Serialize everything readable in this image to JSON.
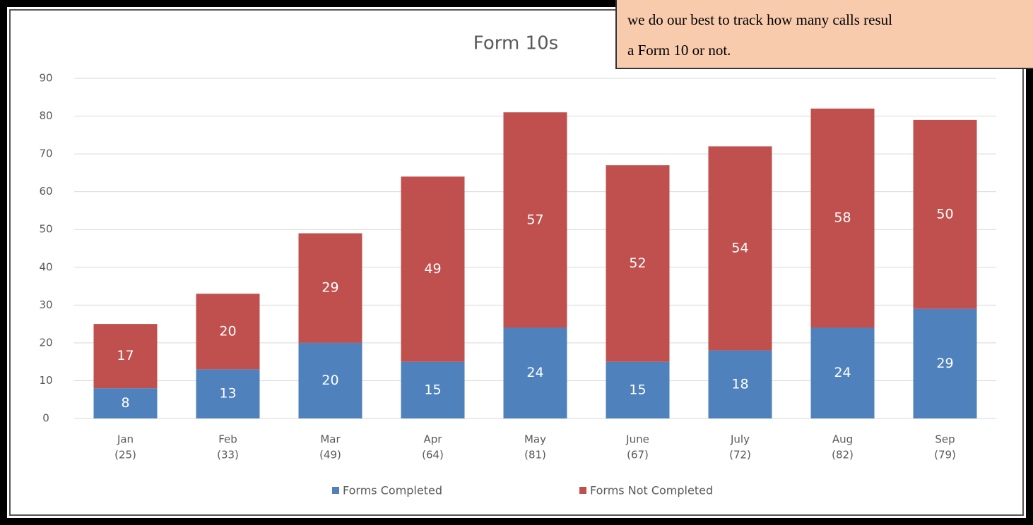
{
  "chart_data": {
    "type": "stacked_bar",
    "title": "Form 10s",
    "categories": [
      [
        "Jan",
        "(25)"
      ],
      [
        "Feb",
        "(33)"
      ],
      [
        "Mar",
        "(49)"
      ],
      [
        "Apr",
        "(64)"
      ],
      [
        "May",
        "(81)"
      ],
      [
        "June",
        "(67)"
      ],
      [
        "July",
        "(72)"
      ],
      [
        "Aug",
        "(82)"
      ],
      [
        "Sep",
        "(79)"
      ]
    ],
    "series": [
      {
        "name": "Forms Completed",
        "color": "#4f81bd",
        "values": [
          8,
          13,
          20,
          15,
          24,
          15,
          18,
          24,
          29
        ]
      },
      {
        "name": "Forms Not Completed",
        "color": "#c0504d",
        "values": [
          17,
          20,
          29,
          49,
          57,
          52,
          54,
          58,
          50
        ]
      }
    ],
    "ylim": [
      0,
      90
    ],
    "yticks": [
      0,
      10,
      20,
      30,
      40,
      50,
      60,
      70,
      80,
      90
    ],
    "grid": true,
    "legend": "bottom",
    "annotation": [
      "we do our best to track how many calls resul",
      "a Form 10 or not."
    ]
  }
}
